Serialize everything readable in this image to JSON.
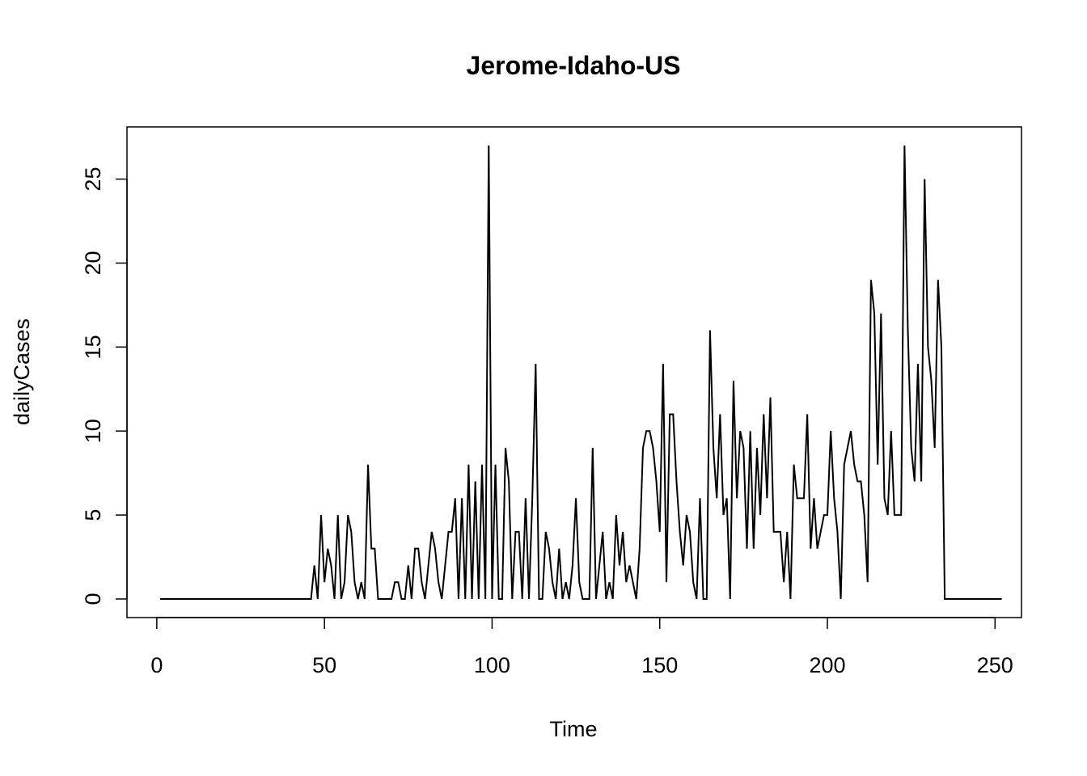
{
  "chart_data": {
    "type": "line",
    "title": "Jerome-Idaho-US",
    "xlabel": "Time",
    "ylabel": "dailyCases",
    "xlim": [
      1,
      248
    ],
    "ylim": [
      0,
      27
    ],
    "xticks": [
      0,
      50,
      100,
      150,
      200,
      250
    ],
    "yticks": [
      0,
      5,
      10,
      15,
      20,
      25
    ],
    "grid": false,
    "series": [
      {
        "values": [
          0,
          0,
          0,
          0,
          0,
          0,
          0,
          0,
          0,
          0,
          0,
          0,
          0,
          0,
          0,
          0,
          0,
          0,
          0,
          0,
          0,
          0,
          0,
          0,
          0,
          0,
          0,
          0,
          0,
          0,
          0,
          0,
          0,
          0,
          0,
          0,
          0,
          0,
          0,
          0,
          0,
          0,
          0,
          0,
          0,
          0,
          2,
          0,
          5,
          1,
          3,
          2,
          0,
          5,
          0,
          1,
          5,
          4,
          1,
          0,
          1,
          0,
          8,
          3,
          3,
          0,
          0,
          0,
          0,
          0,
          1,
          1,
          0,
          0,
          2,
          0,
          3,
          3,
          1,
          0,
          2,
          4,
          3,
          1,
          0,
          2,
          4,
          4,
          6,
          0,
          6,
          0,
          8,
          0,
          7,
          0,
          8,
          0,
          27,
          0,
          8,
          0,
          0,
          9,
          7,
          0,
          4,
          4,
          0,
          6,
          0,
          6,
          14,
          0,
          0,
          4,
          3,
          1,
          0,
          3,
          0,
          1,
          0,
          2,
          6,
          1,
          0,
          0,
          0,
          9,
          0,
          2,
          4,
          0,
          1,
          0,
          5,
          2,
          4,
          1,
          2,
          1,
          0,
          3,
          9,
          10,
          10,
          9,
          7,
          4,
          14,
          1,
          11,
          11,
          7,
          4,
          2,
          5,
          4,
          1,
          0,
          6,
          0,
          0,
          16,
          9,
          6,
          11,
          5,
          6,
          0,
          13,
          6,
          10,
          9,
          3,
          10,
          3,
          9,
          5,
          11,
          6,
          12,
          4,
          4,
          4,
          1,
          4,
          0,
          8,
          6,
          6,
          6,
          11,
          3,
          6,
          3,
          4,
          5,
          5,
          10,
          6,
          4,
          0,
          8,
          9,
          10,
          8,
          7,
          7,
          5,
          1,
          19,
          17,
          8,
          17,
          6,
          5,
          10,
          5,
          5,
          5,
          27,
          16,
          9,
          7,
          14,
          7,
          25,
          15,
          13,
          9,
          19,
          15,
          0,
          0,
          0,
          0,
          0,
          0,
          0,
          0,
          0,
          0,
          0,
          0,
          0,
          0,
          0,
          0,
          0,
          0
        ]
      }
    ]
  }
}
